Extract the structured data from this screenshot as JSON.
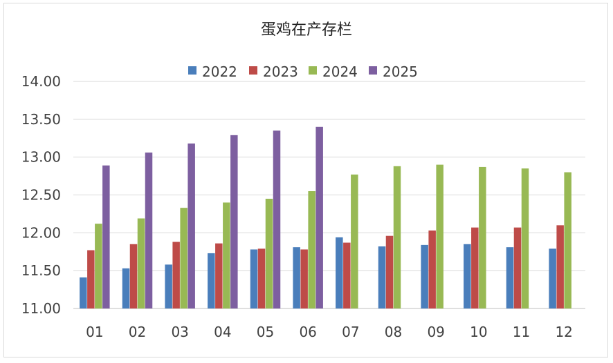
{
  "chart_data": {
    "type": "bar",
    "title": "蛋鸡在产存栏",
    "xlabel": "",
    "ylabel": "",
    "categories": [
      "01",
      "02",
      "03",
      "04",
      "05",
      "06",
      "07",
      "08",
      "09",
      "10",
      "11",
      "12"
    ],
    "y_ticks": [
      "11.00",
      "11.50",
      "12.00",
      "12.50",
      "13.00",
      "13.50",
      "14.00"
    ],
    "ylim": [
      11.0,
      14.0
    ],
    "grid": true,
    "legend_position": "top",
    "series": [
      {
        "name": "2022",
        "color": "#4a7ebb",
        "values": [
          11.41,
          11.53,
          11.58,
          11.73,
          11.78,
          11.81,
          11.94,
          11.82,
          11.84,
          11.85,
          11.81,
          11.79
        ]
      },
      {
        "name": "2023",
        "color": "#be4b48",
        "values": [
          11.77,
          11.85,
          11.88,
          11.86,
          11.79,
          11.78,
          11.87,
          11.96,
          12.03,
          12.07,
          12.07,
          12.1
        ]
      },
      {
        "name": "2024",
        "color": "#98b954",
        "values": [
          12.12,
          12.19,
          12.33,
          12.4,
          12.45,
          12.55,
          12.77,
          12.88,
          12.9,
          12.87,
          12.85,
          12.8
        ]
      },
      {
        "name": "2025",
        "color": "#7d5fa0",
        "values": [
          12.89,
          13.06,
          13.18,
          13.29,
          13.35,
          13.4,
          null,
          null,
          null,
          null,
          null,
          null
        ]
      }
    ]
  }
}
